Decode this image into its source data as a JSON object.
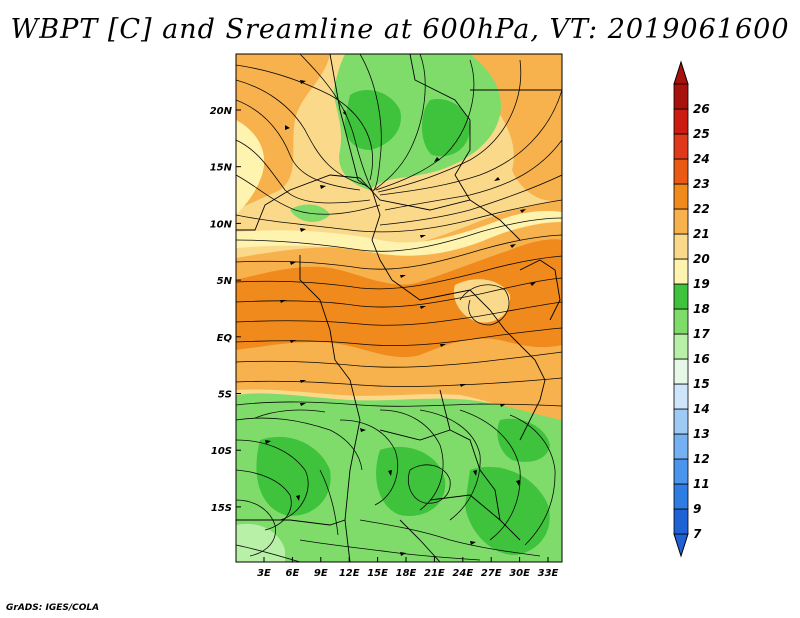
{
  "title": "WBPT [C] and Sreamline at 600hPa, VT: 2019061600",
  "credit": "GrADS: IGES/COLA",
  "map": {
    "lon_ticks": [
      "3E",
      "6E",
      "9E",
      "12E",
      "15E",
      "18E",
      "21E",
      "24E",
      "27E",
      "30E",
      "33E"
    ],
    "lat_ticks": [
      "20N",
      "15N",
      "10N",
      "5N",
      "EQ",
      "5S",
      "10S",
      "15S"
    ]
  },
  "colorbar": {
    "levels": [
      "7",
      "9",
      "11",
      "12",
      "13",
      "14",
      "15",
      "16",
      "17",
      "18",
      "19",
      "20",
      "21",
      "22",
      "23",
      "24",
      "25",
      "26"
    ],
    "colors": [
      "#1f62d6",
      "#2f7de3",
      "#4b95ec",
      "#74b0f2",
      "#9fcaf6",
      "#cde6fb",
      "#e8f8e8",
      "#b8f0a8",
      "#7fdc6b",
      "#3fc23c",
      "#fff3b0",
      "#fbd98a",
      "#f7b24e",
      "#f08a1c",
      "#ea5a14",
      "#e0381a",
      "#cc1c12",
      "#a8120c"
    ]
  }
}
